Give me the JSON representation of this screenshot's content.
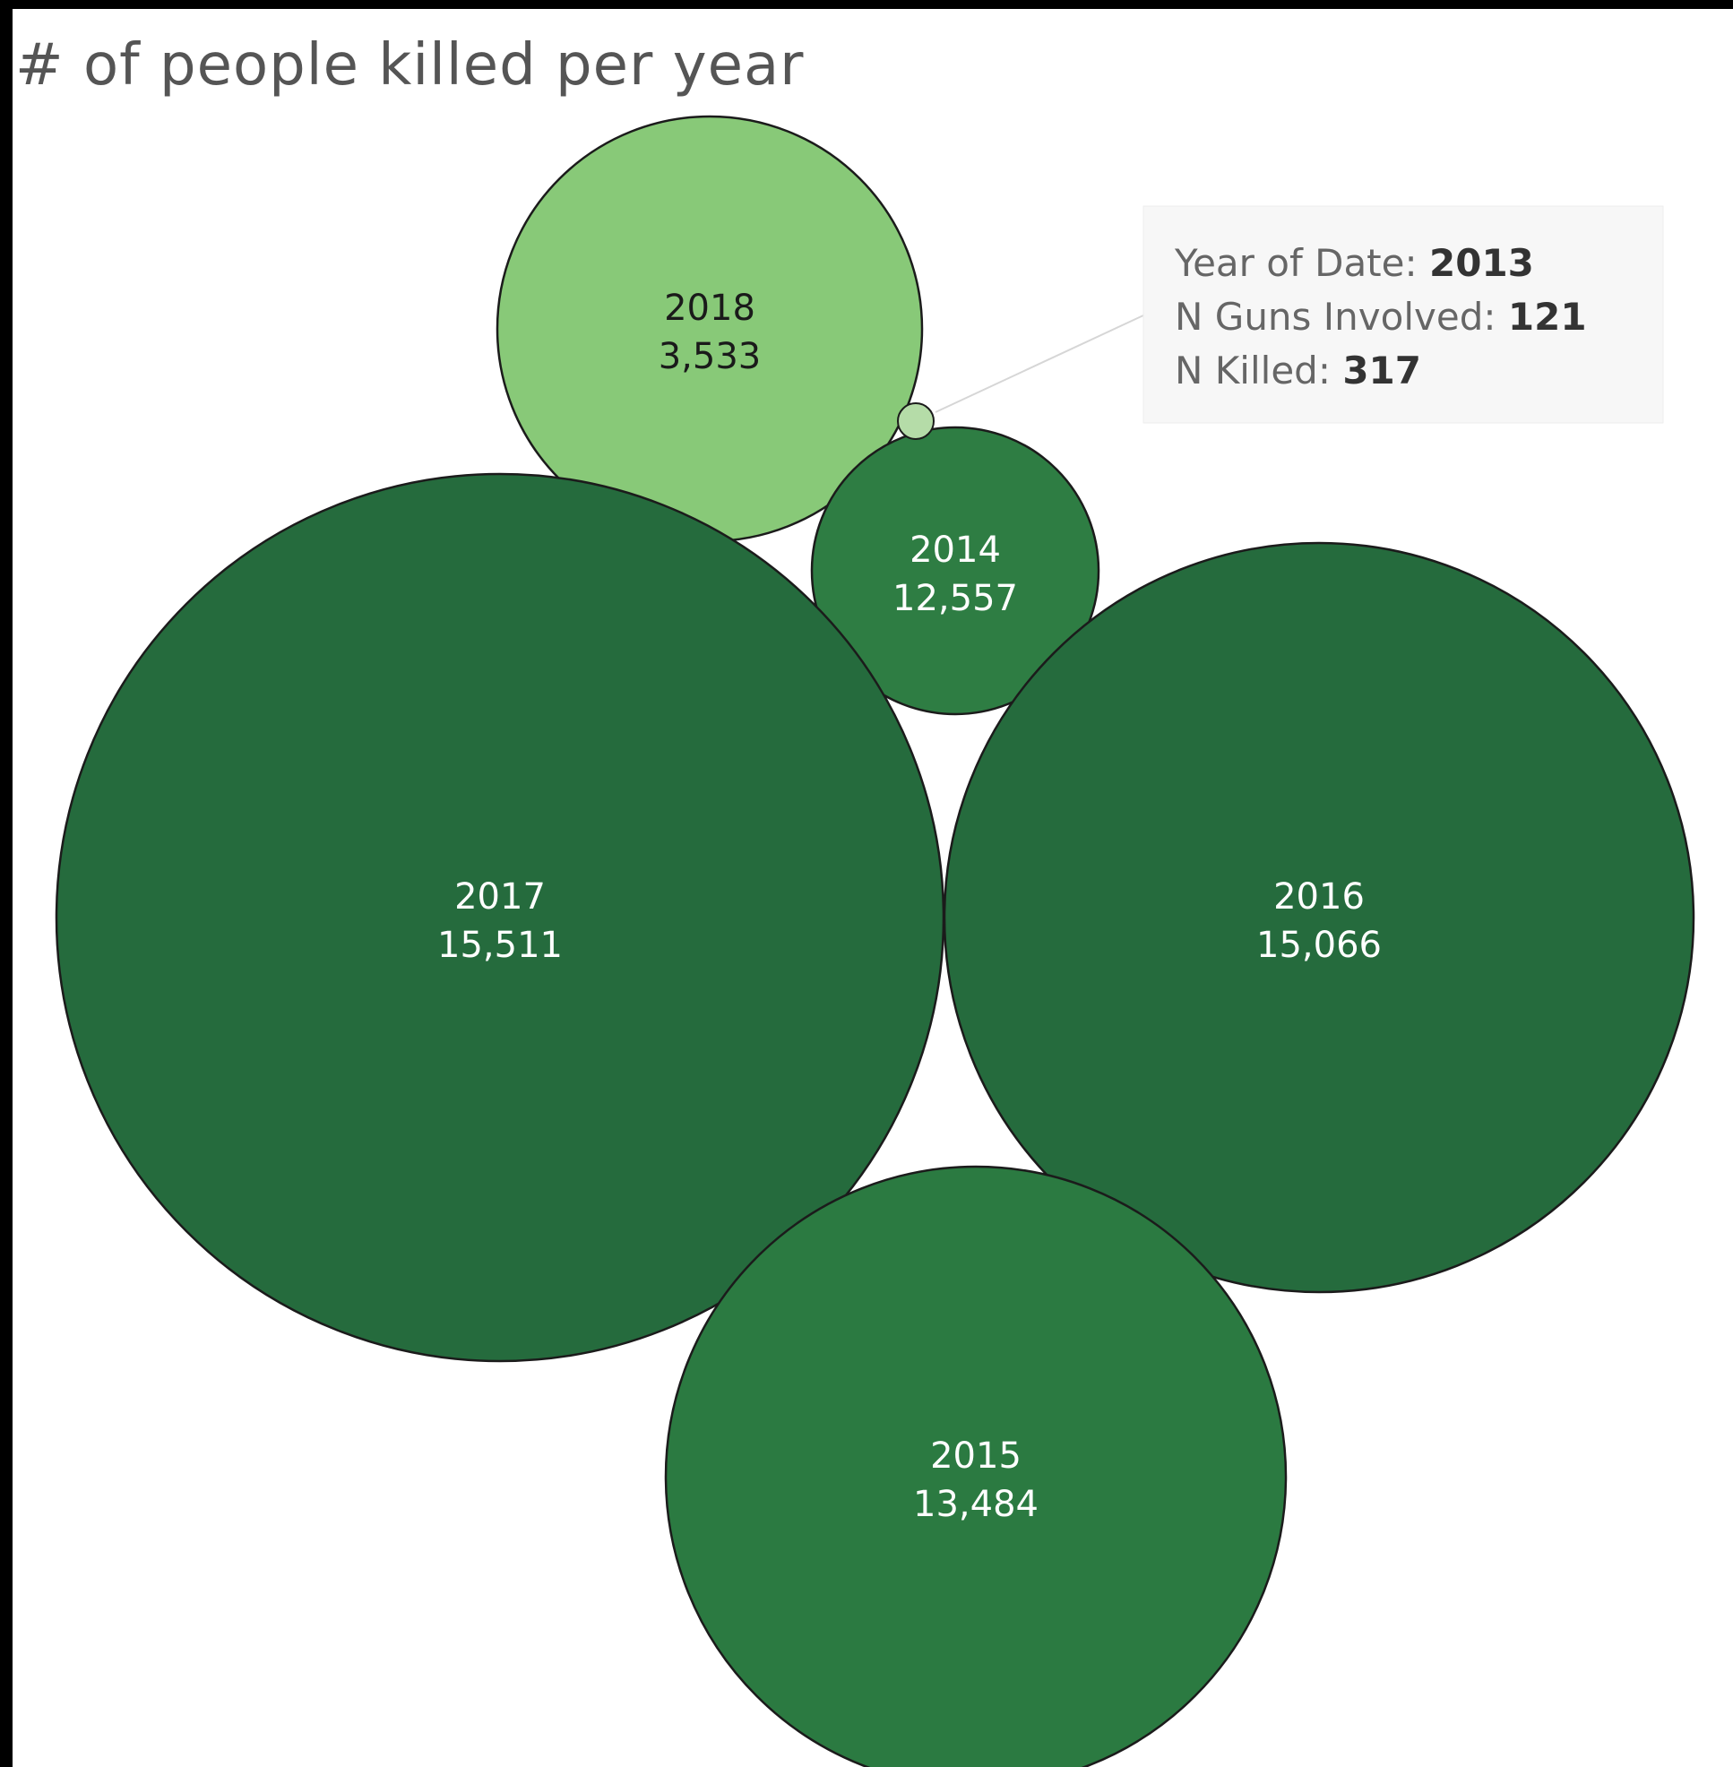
{
  "chart_data": {
    "type": "bubble",
    "title": "# of people killed per year",
    "bubbles": [
      {
        "year": "2018",
        "label": "3,533",
        "value": 3533,
        "color": "#88c978",
        "text_color": "#1a1a1a"
      },
      {
        "year": "2014",
        "label": "12,557",
        "value": 12557,
        "color": "#2e7d43",
        "text_color": "#ffffff"
      },
      {
        "year": "2017",
        "label": "15,511",
        "value": 15511,
        "color": "#256b3d",
        "text_color": "#ffffff"
      },
      {
        "year": "2016",
        "label": "15,066",
        "value": 15066,
        "color": "#256b3d",
        "text_color": "#ffffff"
      },
      {
        "year": "2015",
        "label": "13,484",
        "value": 13484,
        "color": "#2b7a41",
        "text_color": "#ffffff"
      },
      {
        "year": "2013",
        "value": 317,
        "color": "#b5dca8",
        "text_color": "#1a1a1a"
      }
    ],
    "tooltip": {
      "rows": [
        {
          "label": "Year of Date:",
          "value": "2013"
        },
        {
          "label": "N Guns Involved:",
          "value": "121"
        },
        {
          "label": "N Killed:",
          "value": "317"
        }
      ]
    }
  }
}
